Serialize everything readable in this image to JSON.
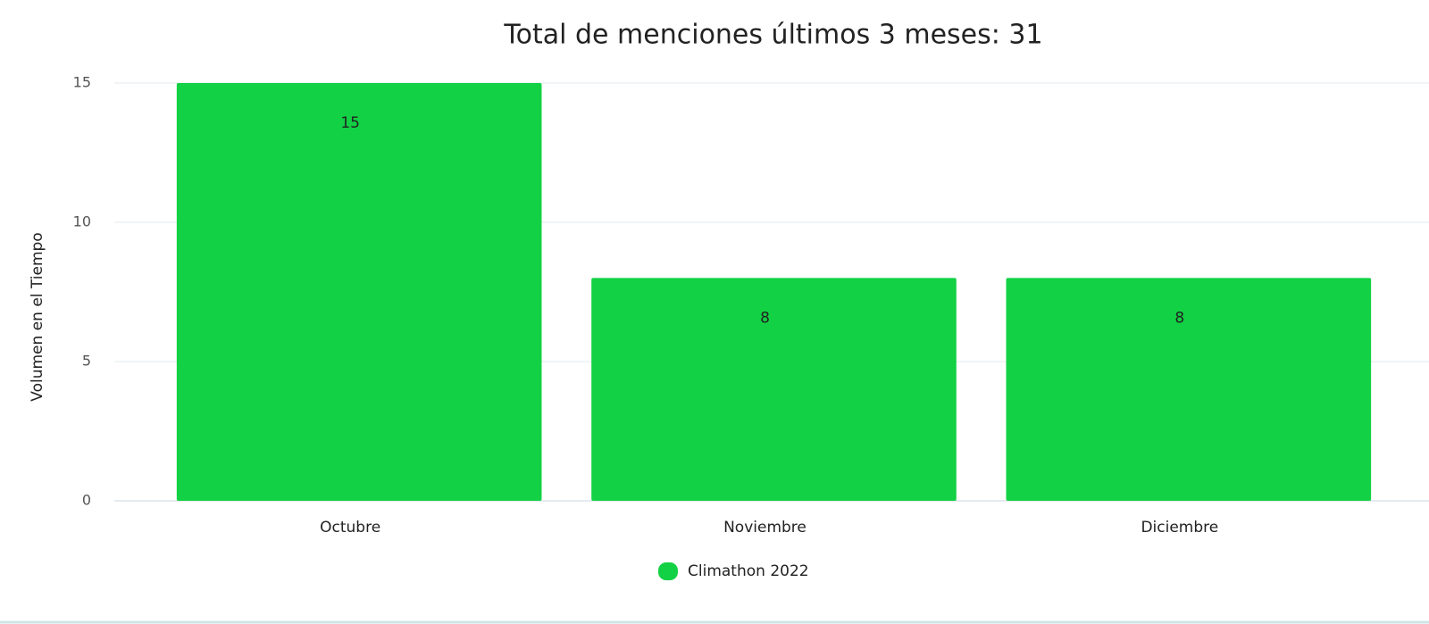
{
  "chart_data": {
    "type": "bar",
    "title": "Total de menciones últimos 3 meses: 31",
    "y_label": "Volumen en el Tiempo",
    "categories": [
      "Octubre",
      "Noviembre",
      "Diciembre"
    ],
    "series": [
      {
        "name": "Climathon 2022",
        "color": "#12d144",
        "values": [
          15,
          8,
          8
        ]
      }
    ],
    "ylim": [
      0,
      15
    ],
    "yticks": [
      0,
      5,
      10,
      15
    ],
    "grid": true,
    "legend": "bottom"
  }
}
